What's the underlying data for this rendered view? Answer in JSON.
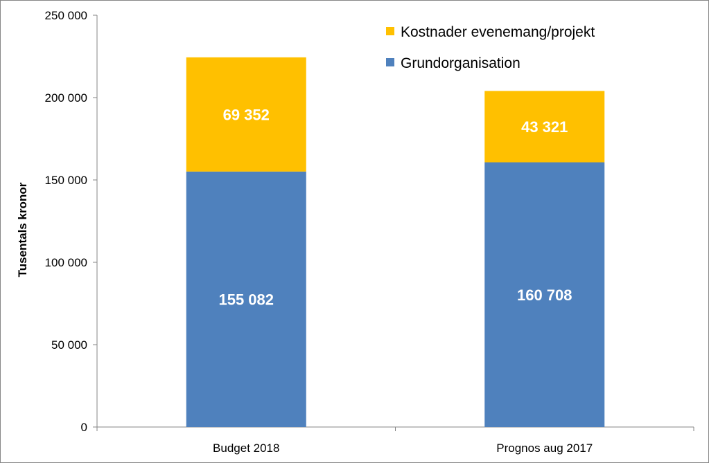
{
  "chart_data": {
    "type": "bar",
    "stacked": true,
    "categories": [
      "Budget 2018",
      "Prognos aug 2017"
    ],
    "series": [
      {
        "name": "Grundorganisation",
        "values": [
          155082,
          160708
        ],
        "labels": [
          "155 082",
          "160 708"
        ],
        "color": "#4f81bd"
      },
      {
        "name": "Kostnader evenemang/projekt",
        "values": [
          69352,
          43321
        ],
        "labels": [
          "69 352",
          "43 321"
        ],
        "color": "#ffc000"
      }
    ],
    "ylabel": "Tusentals kronor",
    "ylim": [
      0,
      250000
    ],
    "yticks": [
      0,
      50000,
      100000,
      150000,
      200000,
      250000
    ],
    "ytick_labels": [
      "0",
      "50 000",
      "100 000",
      "150 000",
      "200 000",
      "250 000"
    ],
    "grid": false,
    "legend": {
      "placement": "top-right",
      "entries": [
        {
          "label": "Kostnader evenemang/projekt",
          "color": "#ffc000"
        },
        {
          "label": "Grundorganisation",
          "color": "#4f81bd"
        }
      ]
    }
  }
}
